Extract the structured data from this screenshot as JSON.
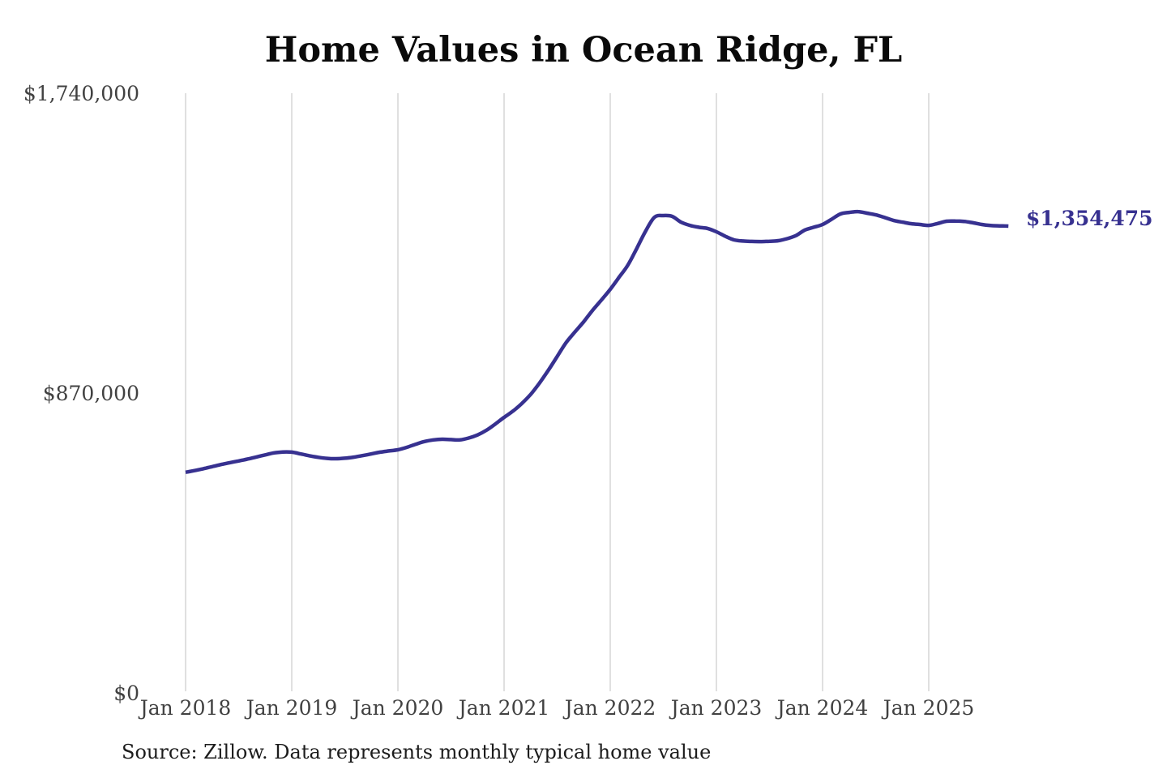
{
  "title": "Home Values in Ocean Ridge, FL",
  "end_label": "$1,354,475",
  "source_note": "Source: Zillow. Data represents monthly typical home value",
  "colors": {
    "line": "#373190",
    "end_label_text": "#373190",
    "gridline": "#cccccc",
    "axis_text": "#414141",
    "title_text": "#0a0a0a",
    "source_text": "#1c1c1c",
    "background": "#ffffff"
  },
  "y_axis": {
    "ticks": [
      {
        "label": "$1,740,000",
        "value": 1740000
      },
      {
        "label": "$870,000",
        "value": 870000
      },
      {
        "label": "$0",
        "value": 0
      }
    ]
  },
  "x_axis": {
    "ticks": [
      "Jan 2018",
      "Jan 2019",
      "Jan 2020",
      "Jan 2021",
      "Jan 2022",
      "Jan 2023",
      "Jan 2024",
      "Jan 2025"
    ]
  },
  "chart_data": {
    "type": "line",
    "title": "Home Values in Ocean Ridge, FL",
    "xlabel": "",
    "ylabel": "",
    "ylim": [
      0,
      1740000
    ],
    "grid": "vertical-only",
    "legend_position": "none",
    "line_color": "#373190",
    "end_value": 1354475,
    "end_value_label": "$1,354,475",
    "series": [
      {
        "name": "Monthly typical home value",
        "months": [
          "2018-01",
          "2018-02",
          "2018-03",
          "2018-04",
          "2018-05",
          "2018-06",
          "2018-07",
          "2018-08",
          "2018-09",
          "2018-10",
          "2018-11",
          "2018-12",
          "2019-01",
          "2019-02",
          "2019-03",
          "2019-04",
          "2019-05",
          "2019-06",
          "2019-07",
          "2019-08",
          "2019-09",
          "2019-10",
          "2019-11",
          "2019-12",
          "2020-01",
          "2020-02",
          "2020-03",
          "2020-04",
          "2020-05",
          "2020-06",
          "2020-07",
          "2020-08",
          "2020-09",
          "2020-10",
          "2020-11",
          "2020-12",
          "2021-01",
          "2021-02",
          "2021-03",
          "2021-04",
          "2021-05",
          "2021-06",
          "2021-07",
          "2021-08",
          "2021-09",
          "2021-10",
          "2021-11",
          "2021-12",
          "2022-01",
          "2022-02",
          "2022-03",
          "2022-04",
          "2022-05",
          "2022-06",
          "2022-07",
          "2022-08",
          "2022-09",
          "2022-10",
          "2022-11",
          "2022-12",
          "2023-01",
          "2023-02",
          "2023-03",
          "2023-04",
          "2023-05",
          "2023-06",
          "2023-07",
          "2023-08",
          "2023-09",
          "2023-10",
          "2023-11",
          "2023-12",
          "2024-01",
          "2024-02",
          "2024-03",
          "2024-04",
          "2024-05",
          "2024-06",
          "2024-07",
          "2024-08",
          "2024-09",
          "2024-10",
          "2024-11",
          "2024-12",
          "2025-01",
          "2025-02",
          "2025-03",
          "2025-04",
          "2025-05",
          "2025-06",
          "2025-07",
          "2025-08",
          "2025-09",
          "2025-10"
        ],
        "values": [
          640000,
          645000,
          650500,
          656500,
          662500,
          668000,
          673000,
          678500,
          684500,
          690500,
          696500,
          699000,
          698500,
          693500,
          688000,
          683500,
          680500,
          679500,
          681000,
          684000,
          688500,
          693500,
          698500,
          702000,
          705500,
          712500,
          721500,
          729500,
          734000,
          736000,
          735000,
          734000,
          739500,
          748500,
          762000,
          780000,
          799500,
          817500,
          839500,
          866000,
          899000,
          936000,
          976000,
          1016000,
          1047000,
          1077000,
          1110000,
          1140000,
          1171000,
          1206000,
          1241500,
          1290000,
          1340000,
          1380000,
          1385000,
          1382500,
          1366000,
          1356500,
          1351000,
          1347500,
          1338000,
          1325000,
          1314500,
          1311000,
          1310000,
          1309500,
          1310500,
          1312000,
          1318000,
          1327000,
          1343000,
          1351000,
          1359000,
          1374000,
          1389500,
          1394000,
          1396500,
          1392000,
          1387000,
          1379500,
          1371000,
          1366000,
          1361500,
          1359000,
          1356500,
          1362000,
          1368500,
          1369000,
          1368000,
          1364000,
          1359000,
          1356000,
          1355000,
          1354475
        ]
      }
    ]
  }
}
